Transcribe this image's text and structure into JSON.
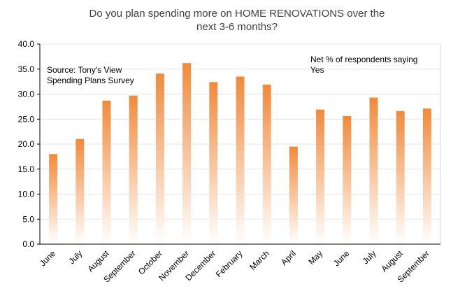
{
  "chart_data": {
    "type": "bar",
    "title_lines": [
      "Do you plan spending more on HOME RENOVATIONS over the",
      "next 3-6 months?"
    ],
    "source_lines": [
      "Source: Tony's View",
      "Spending Plans Survey"
    ],
    "series_label_lines": [
      "Net % of respondents saying",
      "Yes"
    ],
    "categories": [
      "June",
      "July",
      "August",
      "September",
      "October",
      "November",
      "December",
      "February",
      "March",
      "April",
      "May",
      "June",
      "July",
      "August",
      "September"
    ],
    "values": [
      18.0,
      21.0,
      28.7,
      29.7,
      34.1,
      36.2,
      32.4,
      33.5,
      31.9,
      19.5,
      26.9,
      25.6,
      29.3,
      26.6,
      27.1
    ],
    "ylim": [
      0,
      40
    ],
    "yticks": [
      "0.0",
      "5.0",
      "10.0",
      "15.0",
      "20.0",
      "25.0",
      "30.0",
      "35.0",
      "40.0"
    ],
    "grid": true,
    "bar_color_top": "#f08a3c",
    "bar_color_bottom": "#ffffff",
    "grid_color": "#e6e6e6"
  }
}
